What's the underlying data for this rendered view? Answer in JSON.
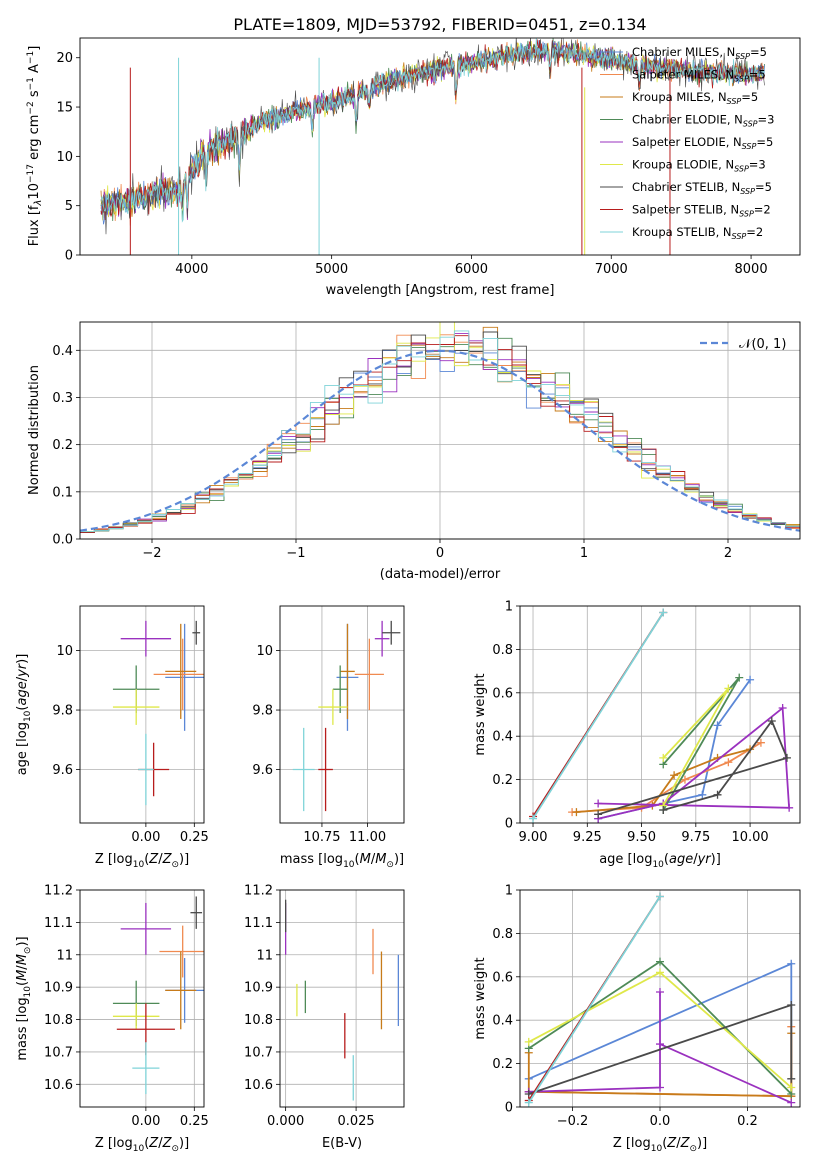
{
  "title": "PLATE=1809, MJD=53792, FIBERID=0451, z=0.134",
  "models": [
    {
      "name": "Chabrier MILES",
      "nssp": "5",
      "color": "#5b87d6"
    },
    {
      "name": "Salpeter MILES",
      "nssp": "5",
      "color": "#f08a50"
    },
    {
      "name": "Kroupa MILES",
      "nssp": "5",
      "color": "#c77b1a"
    },
    {
      "name": "Chabrier ELODIE",
      "nssp": "3",
      "color": "#4e8a57"
    },
    {
      "name": "Salpeter ELODIE",
      "nssp": "5",
      "color": "#9a31bf"
    },
    {
      "name": "Kroupa ELODIE",
      "nssp": "3",
      "color": "#dfe84a"
    },
    {
      "name": "Chabrier STELIB",
      "nssp": "5",
      "color": "#4a4a4a"
    },
    {
      "name": "Salpeter STELIB",
      "nssp": "2",
      "color": "#b71c1c"
    },
    {
      "name": "Kroupa STELIB",
      "nssp": "2",
      "color": "#7fd3d8"
    }
  ],
  "legend_nssp_label": "N",
  "legend_nssp_sub": "SSP",
  "chart_data": [
    {
      "type": "line",
      "id": "spectrum",
      "xlabel": "wavelength [Angstrom, rest frame]",
      "ylabel": "Flux [f",
      "xlim": [
        3200,
        8350
      ],
      "ylim": [
        0,
        22
      ],
      "xticks": [
        4000,
        5000,
        6000,
        7000,
        8000
      ],
      "yticks": [
        0,
        5,
        10,
        15,
        20
      ],
      "continuum": [
        [
          3350,
          5.0
        ],
        [
          3600,
          5.6
        ],
        [
          3800,
          6.5
        ],
        [
          3900,
          6.3
        ],
        [
          4000,
          8.8
        ],
        [
          4100,
          10.6
        ],
        [
          4300,
          11.8
        ],
        [
          4500,
          13.5
        ],
        [
          4700,
          14.5
        ],
        [
          5000,
          15.5
        ],
        [
          5200,
          16.5
        ],
        [
          5500,
          18.0
        ],
        [
          5800,
          19.0
        ],
        [
          6000,
          19.5
        ],
        [
          6300,
          20.5
        ],
        [
          6600,
          20.8
        ],
        [
          7000,
          19.8
        ],
        [
          7300,
          19.0
        ],
        [
          7600,
          18.6
        ],
        [
          8000,
          18.4
        ],
        [
          8100,
          18.6
        ]
      ],
      "features": [
        [
          3933,
          2.5
        ],
        [
          3968,
          3.0
        ],
        [
          4102,
          3.0
        ],
        [
          4340,
          4.0
        ],
        [
          4861,
          2.5
        ],
        [
          5175,
          3.5
        ],
        [
          5270,
          2.0
        ],
        [
          5890,
          3.0
        ],
        [
          6563,
          2.0
        ],
        [
          7200,
          2.0
        ]
      ],
      "spikes": [
        [
          3560,
          0,
          7
        ],
        [
          3905,
          0,
          8
        ],
        [
          4910,
          0,
          8
        ],
        [
          6790,
          0,
          7
        ],
        [
          6810,
          0,
          5
        ],
        [
          7420,
          0,
          7
        ]
      ]
    },
    {
      "type": "histogram",
      "id": "residuals",
      "xlabel": "(data-model)/error",
      "ylabel": "Normed distribution",
      "xlim": [
        -2.5,
        2.5
      ],
      "ylim": [
        0,
        0.46
      ],
      "xticks": [
        -2,
        -1,
        0,
        1,
        2
      ],
      "yticks": [
        0.0,
        0.1,
        0.2,
        0.3,
        0.4
      ],
      "curve_label": "𝒩(0, 1)",
      "curve_color": "#5b87d6",
      "bin_width": 0.1
    },
    {
      "type": "scatter",
      "id": "age-vs-Z",
      "xlabel": "Z [log",
      "ylabel": "age  [log",
      "xlim": [
        -0.34,
        0.3
      ],
      "ylim": [
        9.42,
        10.15
      ],
      "xticks": [
        0.0,
        0.25
      ],
      "xticklabels": [
        "0.00",
        "0.25"
      ],
      "yticks": [
        9.6,
        9.8,
        10.0
      ],
      "points": [
        {
          "x": 0.2,
          "y": 9.91,
          "xerr": 0.1,
          "yerr": 0.18,
          "c": 0
        },
        {
          "x": 0.19,
          "y": 9.92,
          "xerr": 0.15,
          "yerr": 0.12,
          "c": 1
        },
        {
          "x": 0.18,
          "y": 9.93,
          "xerr": 0.08,
          "yerr": 0.16,
          "c": 2
        },
        {
          "x": -0.05,
          "y": 9.87,
          "xerr": 0.12,
          "yerr": 0.08,
          "c": 3
        },
        {
          "x": 0.0,
          "y": 10.04,
          "xerr": 0.13,
          "yerr": 0.06,
          "c": 4
        },
        {
          "x": -0.05,
          "y": 9.81,
          "xerr": 0.12,
          "yerr": 0.06,
          "c": 5
        },
        {
          "x": 0.26,
          "y": 10.06,
          "xerr": 0.02,
          "yerr": 0.04,
          "c": 6
        },
        {
          "x": 0.04,
          "y": 9.6,
          "xerr": 0.08,
          "yerr": 0.09,
          "c": 7
        },
        {
          "x": 0.0,
          "y": 9.6,
          "xerr": 0.04,
          "yerr": 0.12,
          "c": 8
        }
      ]
    },
    {
      "type": "scatter",
      "id": "age-vs-mass",
      "xlabel": "mass [log",
      "ylabel": "",
      "xlim": [
        10.52,
        11.2
      ],
      "ylim": [
        9.42,
        10.15
      ],
      "xticks": [
        10.75,
        11.0
      ],
      "xticklabels": [
        "10.75",
        "11.00"
      ],
      "yticks": [
        9.6,
        9.8,
        10.0
      ],
      "points": [
        {
          "x": 10.89,
          "y": 9.91,
          "xerr": 0.06,
          "yerr": 0.18,
          "c": 0
        },
        {
          "x": 11.01,
          "y": 9.92,
          "xerr": 0.08,
          "yerr": 0.12,
          "c": 1
        },
        {
          "x": 10.89,
          "y": 9.93,
          "xerr": 0.04,
          "yerr": 0.16,
          "c": 2
        },
        {
          "x": 10.85,
          "y": 9.87,
          "xerr": 0.04,
          "yerr": 0.08,
          "c": 3
        },
        {
          "x": 11.08,
          "y": 10.04,
          "xerr": 0.04,
          "yerr": 0.06,
          "c": 4
        },
        {
          "x": 10.81,
          "y": 9.81,
          "xerr": 0.08,
          "yerr": 0.06,
          "c": 5
        },
        {
          "x": 11.13,
          "y": 10.06,
          "xerr": 0.05,
          "yerr": 0.04,
          "c": 6
        },
        {
          "x": 10.77,
          "y": 9.6,
          "xerr": 0.04,
          "yerr": 0.14,
          "c": 7
        },
        {
          "x": 10.65,
          "y": 9.6,
          "xerr": 0.06,
          "yerr": 0.14,
          "c": 8
        }
      ]
    },
    {
      "type": "line",
      "id": "weight-vs-age",
      "xlabel": "age  [log",
      "ylabel": "mass weight",
      "xlim": [
        8.94,
        10.23
      ],
      "ylim": [
        0,
        1.0
      ],
      "xticks": [
        9.0,
        9.25,
        9.5,
        9.75,
        10.0
      ],
      "xticklabels": [
        "9.00",
        "9.25",
        "9.50",
        "9.75",
        "10.00"
      ],
      "yticks": [
        0.0,
        0.2,
        0.4,
        0.6,
        0.8,
        1.0
      ],
      "series": [
        {
          "c": 0,
          "x": [
            9.3,
            9.6,
            9.78,
            9.85,
            10.0
          ],
          "y": [
            0.02,
            0.09,
            0.13,
            0.45,
            0.66
          ]
        },
        {
          "c": 1,
          "x": [
            9.18,
            9.5,
            9.7,
            9.9,
            10.05
          ],
          "y": [
            0.05,
            0.07,
            0.2,
            0.28,
            0.37
          ]
        },
        {
          "c": 2,
          "x": [
            9.2,
            9.55,
            9.65,
            9.85,
            10.0
          ],
          "y": [
            0.05,
            0.08,
            0.22,
            0.3,
            0.34
          ]
        },
        {
          "c": 3,
          "x": [
            9.6,
            9.95,
            9.6
          ],
          "y": [
            0.27,
            0.67,
            0.06
          ]
        },
        {
          "c": 4,
          "x": [
            9.3,
            9.6,
            10.15,
            10.18,
            9.3
          ],
          "y": [
            0.02,
            0.09,
            0.53,
            0.07,
            0.09
          ]
        },
        {
          "c": 5,
          "x": [
            9.6,
            9.9,
            9.6
          ],
          "y": [
            0.3,
            0.62,
            0.08
          ]
        },
        {
          "c": 6,
          "x": [
            9.6,
            9.85,
            10.1,
            10.17,
            9.3
          ],
          "y": [
            0.06,
            0.13,
            0.47,
            0.3,
            0.04
          ]
        },
        {
          "c": 7,
          "x": [
            9.0,
            9.6
          ],
          "y": [
            0.03,
            0.97
          ]
        },
        {
          "c": 8,
          "x": [
            9.0,
            9.6
          ],
          "y": [
            0.02,
            0.97
          ]
        }
      ]
    },
    {
      "type": "scatter",
      "id": "mass-vs-Z",
      "xlabel": "Z [log",
      "ylabel": "mass [log",
      "xlim": [
        -0.34,
        0.3
      ],
      "ylim": [
        10.53,
        11.2
      ],
      "xticks": [
        0.0,
        0.25
      ],
      "xticklabels": [
        "0.00",
        "0.25"
      ],
      "yticks": [
        10.6,
        10.7,
        10.8,
        10.9,
        11.0,
        11.1,
        11.2
      ],
      "points": [
        {
          "x": 0.2,
          "y": 10.89,
          "xerr": 0.1,
          "yerr": 0.1,
          "c": 0
        },
        {
          "x": 0.19,
          "y": 11.01,
          "xerr": 0.12,
          "yerr": 0.08,
          "c": 1
        },
        {
          "x": 0.18,
          "y": 10.89,
          "xerr": 0.08,
          "yerr": 0.12,
          "c": 2
        },
        {
          "x": -0.05,
          "y": 10.85,
          "xerr": 0.12,
          "yerr": 0.07,
          "c": 3
        },
        {
          "x": 0.0,
          "y": 11.08,
          "xerr": 0.13,
          "yerr": 0.08,
          "c": 4
        },
        {
          "x": -0.05,
          "y": 10.81,
          "xerr": 0.12,
          "yerr": 0.04,
          "c": 5
        },
        {
          "x": 0.26,
          "y": 11.13,
          "xerr": 0.03,
          "yerr": 0.05,
          "c": 6
        },
        {
          "x": 0.0,
          "y": 10.77,
          "xerr": 0.15,
          "yerr": 0.08,
          "c": 7
        },
        {
          "x": 0.0,
          "y": 10.65,
          "xerr": 0.07,
          "yerr": 0.08,
          "c": 8
        }
      ]
    },
    {
      "type": "scatter",
      "id": "mass-vs-ebv",
      "xlabel": "E(B-V)",
      "ylabel": "",
      "xlim": [
        -0.002,
        0.042
      ],
      "ylim": [
        10.53,
        11.2
      ],
      "xticks": [
        0.0,
        0.025
      ],
      "xticklabels": [
        "0.000",
        "0.025"
      ],
      "yticks": [
        10.6,
        10.7,
        10.8,
        10.9,
        11.0,
        11.1,
        11.2
      ],
      "points": [
        {
          "x": 0.04,
          "y": 10.89,
          "xerr": 0,
          "yerr": 0.11,
          "c": 0
        },
        {
          "x": 0.031,
          "y": 11.01,
          "xerr": 0,
          "yerr": 0.07,
          "c": 1
        },
        {
          "x": 0.034,
          "y": 10.89,
          "xerr": 0,
          "yerr": 0.12,
          "c": 2
        },
        {
          "x": 0.007,
          "y": 10.87,
          "xerr": 0,
          "yerr": 0.05,
          "c": 3
        },
        {
          "x": 0.0,
          "y": 11.08,
          "xerr": 0,
          "yerr": 0.08,
          "c": 4
        },
        {
          "x": 0.004,
          "y": 10.86,
          "xerr": 0,
          "yerr": 0.05,
          "c": 5
        },
        {
          "x": 0.0,
          "y": 11.12,
          "xerr": 0,
          "yerr": 0.05,
          "c": 6
        },
        {
          "x": 0.021,
          "y": 10.75,
          "xerr": 0,
          "yerr": 0.07,
          "c": 7
        },
        {
          "x": 0.024,
          "y": 10.62,
          "xerr": 0,
          "yerr": 0.07,
          "c": 8
        }
      ]
    },
    {
      "type": "line",
      "id": "weight-vs-Z",
      "xlabel": "Z [log",
      "ylabel": "mass weight",
      "xlim": [
        -0.32,
        0.32
      ],
      "ylim": [
        0,
        1.0
      ],
      "xticks": [
        -0.2,
        0.0,
        0.2
      ],
      "xticklabels": [
        "−0.2",
        "0.0",
        "0.2"
      ],
      "yticks": [
        0.0,
        0.2,
        0.4,
        0.6,
        0.8,
        1.0
      ],
      "series": [
        {
          "c": 0,
          "x": [
            -0.3,
            0.3,
            0.3
          ],
          "y": [
            0.13,
            0.66,
            0.05
          ]
        },
        {
          "c": 1,
          "x": [
            -0.3,
            0.3,
            0.3,
            0.3
          ],
          "y": [
            0.07,
            0.05,
            0.37,
            0.05
          ]
        },
        {
          "c": 2,
          "x": [
            -0.3,
            -0.3,
            0.3,
            0.3
          ],
          "y": [
            0.25,
            0.07,
            0.05,
            0.34
          ]
        },
        {
          "c": 3,
          "x": [
            -0.3,
            0.0,
            0.3
          ],
          "y": [
            0.27,
            0.67,
            0.06
          ]
        },
        {
          "c": 4,
          "x": [
            -0.3,
            0.0,
            0.0,
            0.0,
            0.3
          ],
          "y": [
            0.07,
            0.09,
            0.53,
            0.29,
            0.02
          ]
        },
        {
          "c": 5,
          "x": [
            -0.3,
            0.0,
            0.3
          ],
          "y": [
            0.3,
            0.62,
            0.09
          ]
        },
        {
          "c": 6,
          "x": [
            -0.3,
            0.3,
            0.3
          ],
          "y": [
            0.06,
            0.47,
            0.13
          ]
        },
        {
          "c": 7,
          "x": [
            -0.3,
            0.0
          ],
          "y": [
            0.03,
            0.97
          ]
        },
        {
          "c": 8,
          "x": [
            -0.3,
            0.0
          ],
          "y": [
            0.02,
            0.97
          ]
        }
      ]
    }
  ]
}
